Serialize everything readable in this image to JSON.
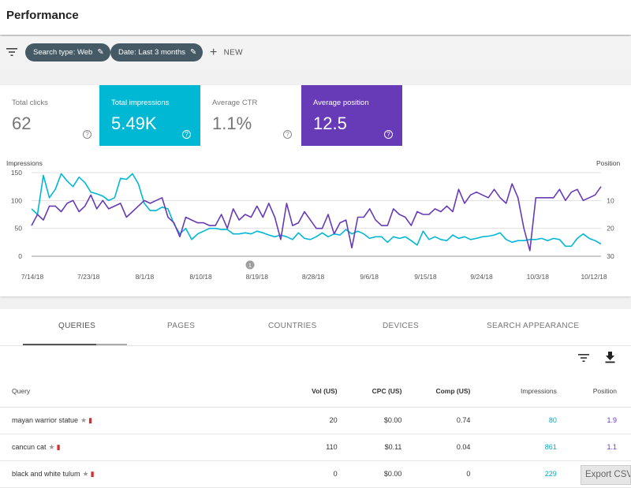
{
  "header": {
    "title": "Performance"
  },
  "filters": {
    "chips": [
      {
        "label": "Search type: Web"
      },
      {
        "label": "Date: Last 3 months"
      }
    ],
    "new_label": "NEW"
  },
  "metrics": [
    {
      "label": "Total clicks",
      "value": "62",
      "style": "light"
    },
    {
      "label": "Total impressions",
      "value": "5.49K",
      "style": "teal",
      "color": "#00b8d4"
    },
    {
      "label": "Average CTR",
      "value": "1.1%",
      "style": "light"
    },
    {
      "label": "Average position",
      "value": "12.5",
      "style": "purple",
      "color": "#673ab7"
    }
  ],
  "chart": {
    "left_axis_title": "Impressions",
    "right_axis_title": "Position",
    "left_ticks": [
      "150",
      "100",
      "50",
      "0"
    ],
    "right_ticks": [
      "10",
      "20",
      "30"
    ],
    "x_ticks": [
      "7/14/18",
      "7/23/18",
      "8/1/18",
      "8/10/18",
      "8/19/18",
      "8/28/18",
      "9/6/18",
      "9/15/18",
      "9/24/18",
      "10/3/18",
      "10/12/18"
    ],
    "annotation": "1"
  },
  "chart_data": {
    "type": "line",
    "x_start": "7/13/18",
    "x_end": "10/14/18",
    "series": [
      {
        "name": "Total impressions",
        "axis": "left",
        "color": "#00b8d4",
        "ylim": [
          0,
          150
        ],
        "values": [
          85,
          75,
          145,
          105,
          120,
          148,
          135,
          125,
          142,
          132,
          115,
          112,
          108,
          100,
          105,
          140,
          138,
          148,
          130,
          95,
          82,
          82,
          88,
          85,
          58,
          40,
          50,
          30,
          40,
          45,
          50,
          50,
          48,
          48,
          40,
          40,
          42,
          40,
          45,
          42,
          38,
          35,
          38,
          35,
          30,
          42,
          32,
          30,
          35,
          42,
          35,
          40,
          38,
          48,
          40,
          45,
          40,
          32,
          35,
          35,
          25,
          35,
          32,
          35,
          28,
          20,
          45,
          30,
          35,
          30,
          28,
          38,
          32,
          35,
          30,
          32,
          35,
          36,
          38,
          42,
          30,
          25,
          28,
          28,
          30,
          30,
          32,
          28,
          32,
          30,
          18,
          18,
          32,
          40,
          32,
          28,
          22
        ]
      },
      {
        "name": "Average position",
        "axis": "right",
        "color": "#673ab7",
        "ylim": [
          30,
          0
        ],
        "values": [
          19,
          15,
          17,
          12,
          12,
          14,
          11,
          10,
          14,
          12,
          8,
          13,
          10,
          13,
          12,
          11,
          16,
          14,
          12,
          10,
          11,
          10,
          9,
          16,
          18,
          23,
          16,
          17,
          18,
          18,
          19,
          19,
          15,
          20,
          13,
          17,
          15,
          16,
          12,
          16,
          11,
          16,
          24,
          11,
          19,
          18,
          14,
          17,
          20,
          20,
          15,
          22,
          18,
          17,
          27,
          16,
          16,
          13,
          17,
          19,
          19,
          13,
          15,
          16,
          19,
          14,
          15,
          15,
          13,
          14,
          12,
          14,
          6,
          11,
          8,
          7,
          8,
          9,
          6,
          9,
          11,
          4,
          9,
          20,
          28,
          9,
          9,
          9,
          9,
          6,
          10,
          7,
          6,
          10,
          9,
          8,
          5
        ]
      }
    ],
    "left_ylim": [
      0,
      150
    ],
    "right_ylim": [
      30,
      0
    ],
    "left_ylabel": "Impressions",
    "right_ylabel": "Position",
    "grid": true
  },
  "tabs": [
    {
      "label": "QUERIES",
      "active": true
    },
    {
      "label": "PAGES",
      "active": false
    },
    {
      "label": "COUNTRIES",
      "active": false
    },
    {
      "label": "DEVICES",
      "active": false
    },
    {
      "label": "SEARCH APPEARANCE",
      "active": false
    }
  ],
  "table": {
    "headers": {
      "query": "Query",
      "vol": "Vol (US)",
      "cpc": "CPC (US)",
      "comp": "Comp (US)",
      "impressions": "Impressions",
      "position": "Position"
    },
    "rows": [
      {
        "query": "mayan warrior statue",
        "vol": "20",
        "cpc": "$0.00",
        "comp": "0.74",
        "impressions": "80",
        "position": "1.9"
      },
      {
        "query": "cancun cat",
        "vol": "110",
        "cpc": "$0.11",
        "comp": "0.04",
        "impressions": "861",
        "position": "1.1"
      },
      {
        "query": "black and white tulum",
        "vol": "0",
        "cpc": "$0.00",
        "comp": "0",
        "impressions": "229",
        "position": ""
      }
    ]
  },
  "export_label": "Export CSV"
}
